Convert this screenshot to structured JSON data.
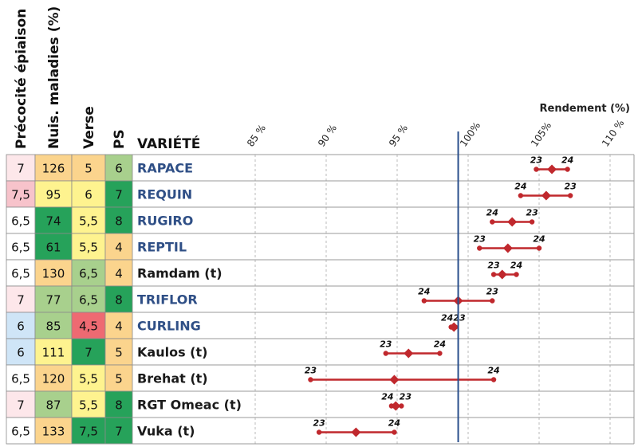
{
  "chart_data": {
    "type": "dumbbell",
    "axis_title": "Rendement",
    "axis_unit": "(%)",
    "xlim": [
      80,
      110
    ],
    "ticks": [
      {
        "value": 85,
        "label": "85 %"
      },
      {
        "value": 90,
        "label": "90 %"
      },
      {
        "value": 95,
        "label": "95 %"
      },
      {
        "value": 100,
        "label": "100%"
      },
      {
        "value": 105,
        "label": "105%"
      },
      {
        "value": 110,
        "label": "110 %"
      }
    ],
    "reference_value": 99.3,
    "grid": "vertical-dashed",
    "columns": [
      {
        "key": "precocite",
        "label": "Précocité épiaison"
      },
      {
        "key": "maladies",
        "label": "Nuis. maladies (%)"
      },
      {
        "key": "verse",
        "label": "Verse"
      },
      {
        "key": "ps",
        "label": "PS"
      }
    ],
    "variety_header": "VARIÉTÉ",
    "rows": [
      {
        "variety": "RAPACE",
        "highlight": true,
        "precocite": "7",
        "maladies": "126",
        "verse": "5",
        "ps": "6",
        "colors": [
          "#fde7ea",
          "#fbd48d",
          "#fbd48d",
          "#a8d08d"
        ],
        "points": [
          {
            "year": "23",
            "value": 104.8
          },
          {
            "year": "24",
            "value": 107.0
          }
        ],
        "mean": 105.9
      },
      {
        "variety": "REQUIN",
        "highlight": true,
        "precocite": "7,5",
        "maladies": "95",
        "verse": "6",
        "ps": "7",
        "colors": [
          "#f7c3cb",
          "#fef38f",
          "#fef38f",
          "#26a25a"
        ],
        "points": [
          {
            "year": "24",
            "value": 103.7
          },
          {
            "year": "23",
            "value": 107.2
          }
        ],
        "mean": 105.5
      },
      {
        "variety": "RUGIRO",
        "highlight": true,
        "precocite": "6,5",
        "maladies": "74",
        "verse": "5,5",
        "ps": "8",
        "colors": [
          "#ffffff",
          "#26a25a",
          "#fef38f",
          "#26a25a"
        ],
        "points": [
          {
            "year": "24",
            "value": 101.7
          },
          {
            "year": "23",
            "value": 104.5
          }
        ],
        "mean": 103.1
      },
      {
        "variety": "REPTIL",
        "highlight": true,
        "precocite": "6,5",
        "maladies": "61",
        "verse": "5,5",
        "ps": "4",
        "colors": [
          "#ffffff",
          "#26a25a",
          "#fef38f",
          "#fbd48d"
        ],
        "points": [
          {
            "year": "23",
            "value": 100.8
          },
          {
            "year": "24",
            "value": 105.0
          }
        ],
        "mean": 102.8
      },
      {
        "variety": "Ramdam (t)",
        "highlight": false,
        "precocite": "6,5",
        "maladies": "130",
        "verse": "6,5",
        "ps": "4",
        "colors": [
          "#ffffff",
          "#fbd48d",
          "#a8d08d",
          "#fbd48d"
        ],
        "points": [
          {
            "year": "23",
            "value": 101.8
          },
          {
            "year": "24",
            "value": 103.4
          }
        ],
        "mean": 102.4
      },
      {
        "variety": "TRIFLOR",
        "highlight": true,
        "precocite": "7",
        "maladies": "77",
        "verse": "6,5",
        "ps": "8",
        "colors": [
          "#fde7ea",
          "#a8d08d",
          "#a8d08d",
          "#26a25a"
        ],
        "points": [
          {
            "year": "24",
            "value": 96.9
          },
          {
            "year": "23",
            "value": 101.7
          }
        ],
        "mean": 99.3
      },
      {
        "variety": "CURLING",
        "highlight": true,
        "precocite": "6",
        "maladies": "85",
        "verse": "4,5",
        "ps": "4",
        "colors": [
          "#cfe5f7",
          "#a8d08d",
          "#ee6a72",
          "#fbd48d"
        ],
        "points": [
          {
            "year": "24",
            "value": 98.8
          },
          {
            "year": "23",
            "value": 99.1
          }
        ],
        "mean": 99.0
      },
      {
        "variety": "Kaulos (t)",
        "highlight": false,
        "precocite": "6",
        "maladies": "111",
        "verse": "7",
        "ps": "5",
        "colors": [
          "#cfe5f7",
          "#fef38f",
          "#26a25a",
          "#fbd48d"
        ],
        "points": [
          {
            "year": "23",
            "value": 94.2
          },
          {
            "year": "24",
            "value": 98.0
          }
        ],
        "mean": 95.8
      },
      {
        "variety": "Brehat (t)",
        "highlight": false,
        "precocite": "6,5",
        "maladies": "120",
        "verse": "5,5",
        "ps": "5",
        "colors": [
          "#ffffff",
          "#fbd48d",
          "#fef38f",
          "#fbd48d"
        ],
        "points": [
          {
            "year": "23",
            "value": 88.9
          },
          {
            "year": "24",
            "value": 101.8
          }
        ],
        "mean": 94.8
      },
      {
        "variety": "RGT Omeac (t)",
        "highlight": false,
        "precocite": "7",
        "maladies": "87",
        "verse": "5,5",
        "ps": "8",
        "colors": [
          "#fde7ea",
          "#a8d08d",
          "#fef38f",
          "#26a25a"
        ],
        "points": [
          {
            "year": "24",
            "value": 94.6
          },
          {
            "year": "23",
            "value": 95.3
          }
        ],
        "mean": 94.9
      },
      {
        "variety": "Vuka (t)",
        "highlight": false,
        "precocite": "6,5",
        "maladies": "133",
        "verse": "7,5",
        "ps": "7",
        "colors": [
          "#ffffff",
          "#fbd48d",
          "#26a25a",
          "#26a25a"
        ],
        "points": [
          {
            "year": "23",
            "value": 89.5
          },
          {
            "year": "24",
            "value": 94.8
          }
        ],
        "mean": 92.1
      }
    ],
    "colors": {
      "marker": "#c0282d",
      "reference": "#2a4f8c",
      "grid": "#bbbbbb",
      "row_border": "#999999"
    }
  }
}
